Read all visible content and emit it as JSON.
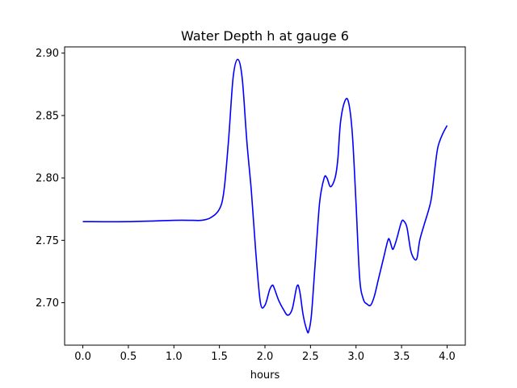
{
  "chart_data": {
    "type": "line",
    "title": "Water Depth h at gauge 6",
    "xlabel": "hours",
    "ylabel": "",
    "xlim": [
      -0.2,
      4.2
    ],
    "ylim": [
      2.666,
      2.905
    ],
    "xticks": [
      "0.0",
      "0.5",
      "1.0",
      "1.5",
      "2.0",
      "2.5",
      "3.0",
      "3.5",
      "4.0"
    ],
    "yticks": [
      "2.70",
      "2.75",
      "2.80",
      "2.85",
      "2.90"
    ],
    "grid": false,
    "series": [
      {
        "color": "#0000ff",
        "x": [
          0.0,
          0.5,
          1.0,
          1.2,
          1.3,
          1.4,
          1.5,
          1.55,
          1.6,
          1.65,
          1.7,
          1.75,
          1.8,
          1.85,
          1.9,
          1.95,
          2.0,
          2.05,
          2.08,
          2.1,
          2.15,
          2.2,
          2.25,
          2.3,
          2.35,
          2.38,
          2.42,
          2.46,
          2.48,
          2.51,
          2.55,
          2.6,
          2.65,
          2.68,
          2.72,
          2.77,
          2.8,
          2.83,
          2.88,
          2.92,
          2.96,
          3.0,
          3.04,
          3.08,
          3.12,
          3.16,
          3.2,
          3.25,
          3.3,
          3.35,
          3.37,
          3.4,
          3.42,
          3.45,
          3.5,
          3.53,
          3.56,
          3.6,
          3.64,
          3.67,
          3.7,
          3.75,
          3.8,
          3.83,
          3.87,
          3.9,
          3.95,
          4.0
        ],
        "y": [
          2.765,
          2.765,
          2.766,
          2.766,
          2.766,
          2.768,
          2.775,
          2.79,
          2.83,
          2.88,
          2.895,
          2.88,
          2.83,
          2.79,
          2.74,
          2.7,
          2.698,
          2.71,
          2.714,
          2.712,
          2.702,
          2.695,
          2.69,
          2.695,
          2.713,
          2.71,
          2.69,
          2.678,
          2.677,
          2.69,
          2.73,
          2.78,
          2.8,
          2.8,
          2.793,
          2.8,
          2.815,
          2.845,
          2.862,
          2.86,
          2.835,
          2.78,
          2.72,
          2.703,
          2.699,
          2.698,
          2.705,
          2.72,
          2.735,
          2.75,
          2.75,
          2.743,
          2.745,
          2.752,
          2.765,
          2.765,
          2.76,
          2.742,
          2.735,
          2.736,
          2.75,
          2.763,
          2.775,
          2.785,
          2.81,
          2.825,
          2.835,
          2.842
        ]
      }
    ]
  }
}
